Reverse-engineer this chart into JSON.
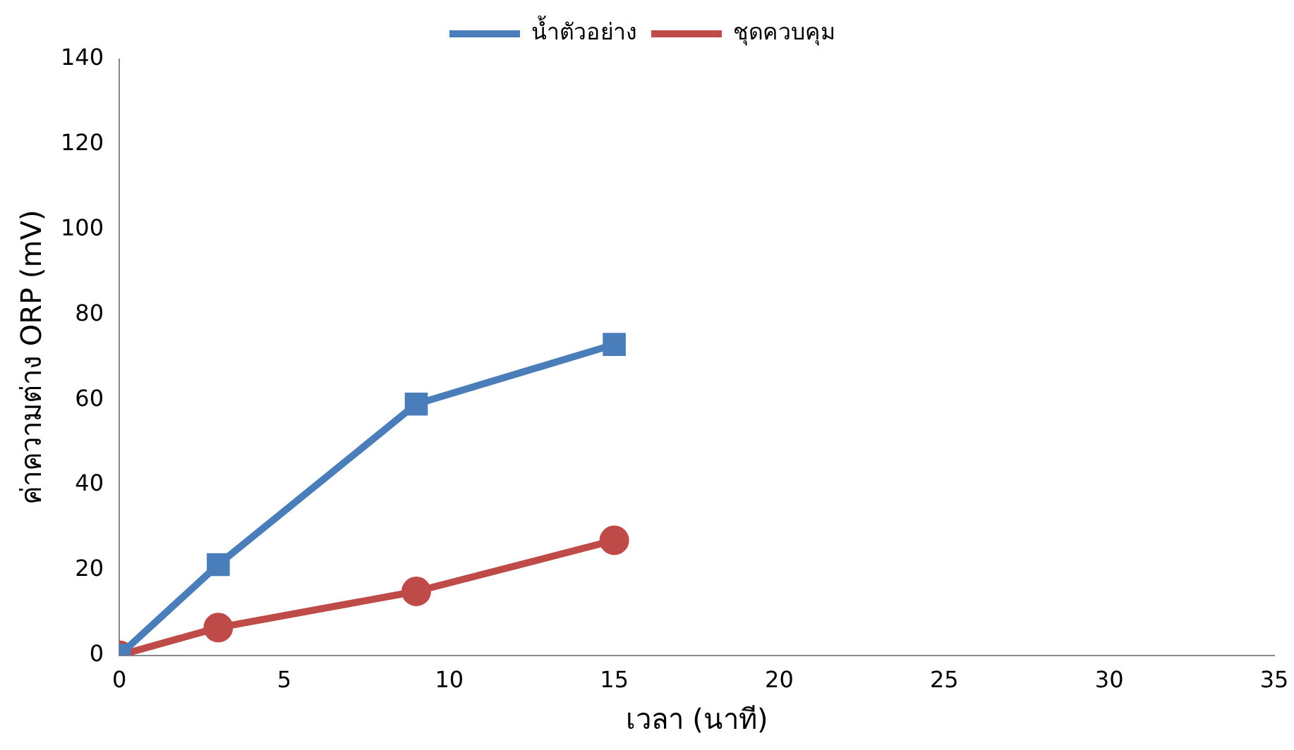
{
  "chart_data": {
    "type": "line",
    "xlabel": "เวลา (นาที)",
    "ylabel": "ค่าความต่าง ORP (mV)",
    "xlim": [
      0,
      35
    ],
    "xticks": [
      0,
      5,
      10,
      15,
      20,
      25,
      30,
      35
    ],
    "ylim": [
      0,
      140
    ],
    "yticks": [
      0,
      20,
      40,
      60,
      80,
      100,
      120,
      140
    ],
    "grid": false,
    "legend": "top",
    "line_style": "solid",
    "series": [
      {
        "name": "น้ำตัวอย่าง",
        "color": "#4a7ebb",
        "marker": "square",
        "x": [
          0,
          3,
          9,
          15
        ],
        "values": [
          0,
          21.3,
          59,
          73
        ]
      },
      {
        "name": "ชุดควบคุม",
        "color": "#be4b48",
        "marker": "circle",
        "x": [
          0,
          3,
          9,
          15
        ],
        "values": [
          0,
          6.5,
          15,
          27
        ]
      }
    ]
  }
}
